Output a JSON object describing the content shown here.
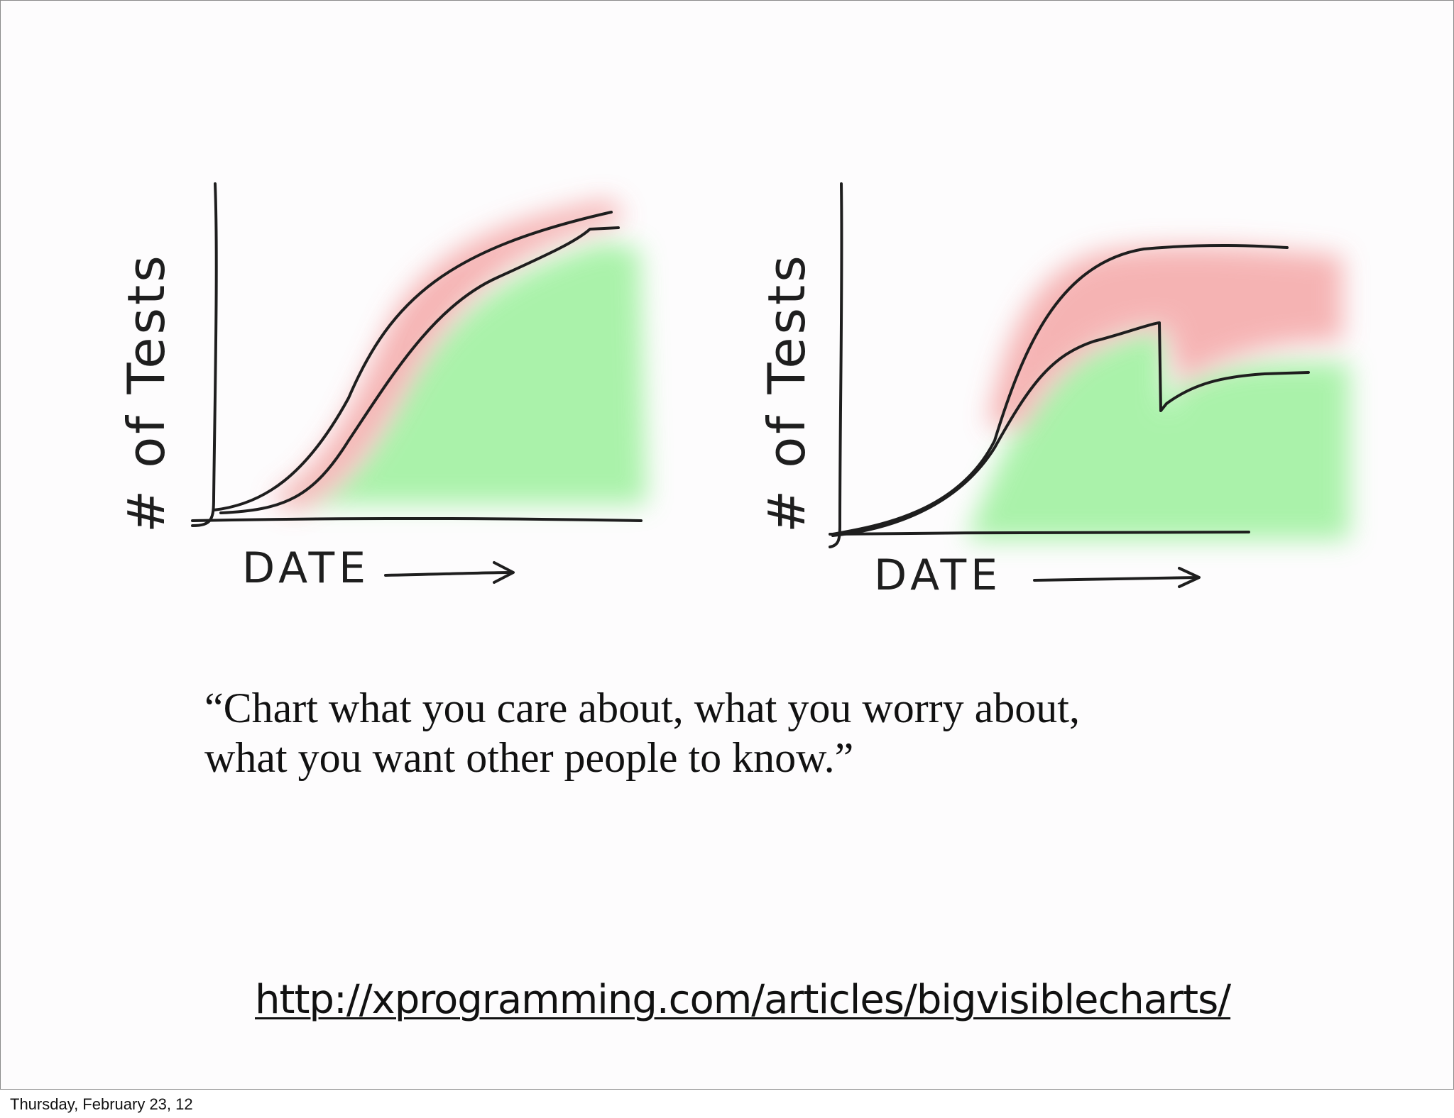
{
  "slide": {
    "charts": [
      {
        "ylabel": "# of Tests",
        "xlabel": "DATE",
        "arrow_icon": "right-arrow-icon",
        "red_color": "#f4a7a7",
        "green_color": "#8fef8f"
      },
      {
        "ylabel": "# of Tests",
        "xlabel": "DATE",
        "arrow_icon": "right-arrow-icon",
        "red_color": "#f4a7a7",
        "green_color": "#8fef8f"
      }
    ],
    "quote": {
      "line1": "“Chart what you care about, what you worry about,",
      "line2": "what you want other people to know.”"
    },
    "link": "http://xprogramming.com/articles/bigvisiblecharts/",
    "footer_date": "Thursday, February 23, 12"
  }
}
